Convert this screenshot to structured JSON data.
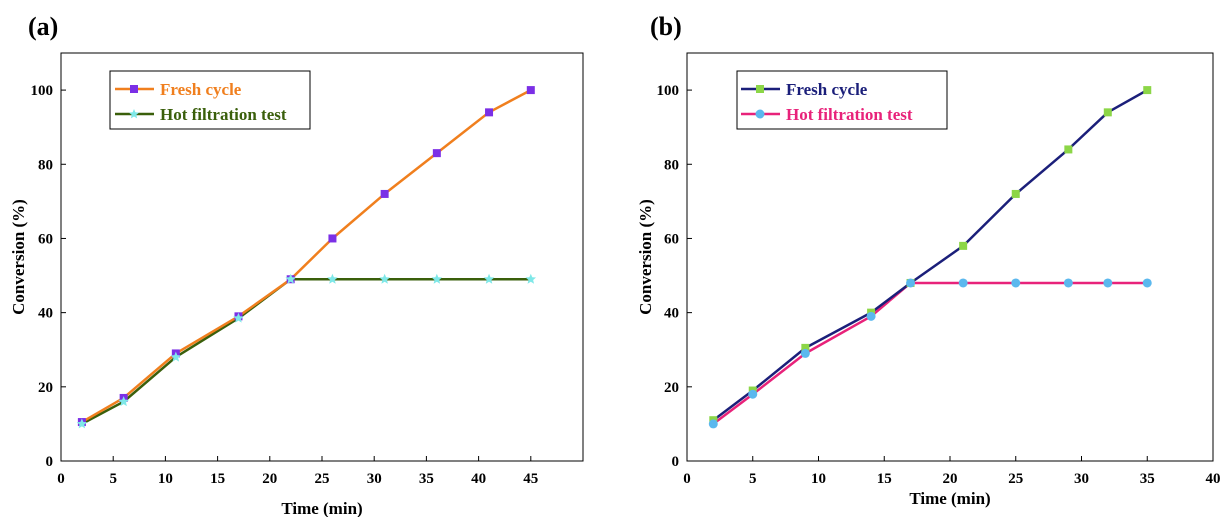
{
  "chart_data": [
    {
      "type": "line",
      "panel": "(a)",
      "xlabel": "Time (min)",
      "ylabel": "Conversion (%)",
      "xlim": [
        0,
        50
      ],
      "ylim": [
        0,
        110
      ],
      "xticks": [
        0,
        5,
        10,
        15,
        20,
        25,
        30,
        35,
        40,
        45
      ],
      "yticks": [
        0,
        20,
        40,
        60,
        80,
        100
      ],
      "grid": false,
      "legend_position": "top-left",
      "series": [
        {
          "name": "Fresh cycle",
          "line_color": "#F07F1E",
          "marker": "square",
          "marker_color": "#7B2FE6",
          "text_color": "#F07F1E",
          "x": [
            2,
            6,
            11,
            17,
            22,
            26,
            31,
            36,
            41,
            45
          ],
          "y": [
            10.5,
            17,
            29,
            39,
            49,
            60,
            72,
            83,
            94,
            100
          ]
        },
        {
          "name": "Hot filtration test",
          "line_color": "#3A5F0B",
          "marker": "star",
          "marker_color": "#7FE8E8",
          "text_color": "#3A5F0B",
          "x": [
            2,
            6,
            11,
            17,
            22,
            26,
            31,
            36,
            41,
            45
          ],
          "y": [
            10,
            16,
            28,
            38.5,
            49,
            49,
            49,
            49,
            49,
            49
          ]
        }
      ]
    },
    {
      "type": "line",
      "panel": "(b)",
      "xlabel": "Time (min)",
      "ylabel": "Conversion (%)",
      "xlim": [
        0,
        40
      ],
      "ylim": [
        0,
        110
      ],
      "xticks": [
        0,
        5,
        10,
        15,
        20,
        25,
        30,
        35,
        40
      ],
      "yticks": [
        0,
        20,
        40,
        60,
        80,
        100
      ],
      "grid": false,
      "legend_position": "top-left",
      "series": [
        {
          "name": "Fresh cycle",
          "line_color": "#1B1F7A",
          "marker": "square",
          "marker_color": "#8CD647",
          "text_color": "#1B1F7A",
          "x": [
            2,
            5,
            9,
            14,
            17,
            21,
            25,
            29,
            32,
            35
          ],
          "y": [
            11,
            19,
            30.5,
            40,
            48,
            58,
            72,
            84,
            94,
            100
          ]
        },
        {
          "name": "Hot filtration test",
          "line_color": "#E8227A",
          "marker": "circle",
          "marker_color": "#5BB8EE",
          "text_color": "#E8227A",
          "x": [
            2,
            5,
            9,
            14,
            17,
            21,
            25,
            29,
            32,
            35
          ],
          "y": [
            10,
            18,
            29,
            39,
            48,
            48,
            48,
            48,
            48,
            48
          ]
        }
      ]
    }
  ]
}
